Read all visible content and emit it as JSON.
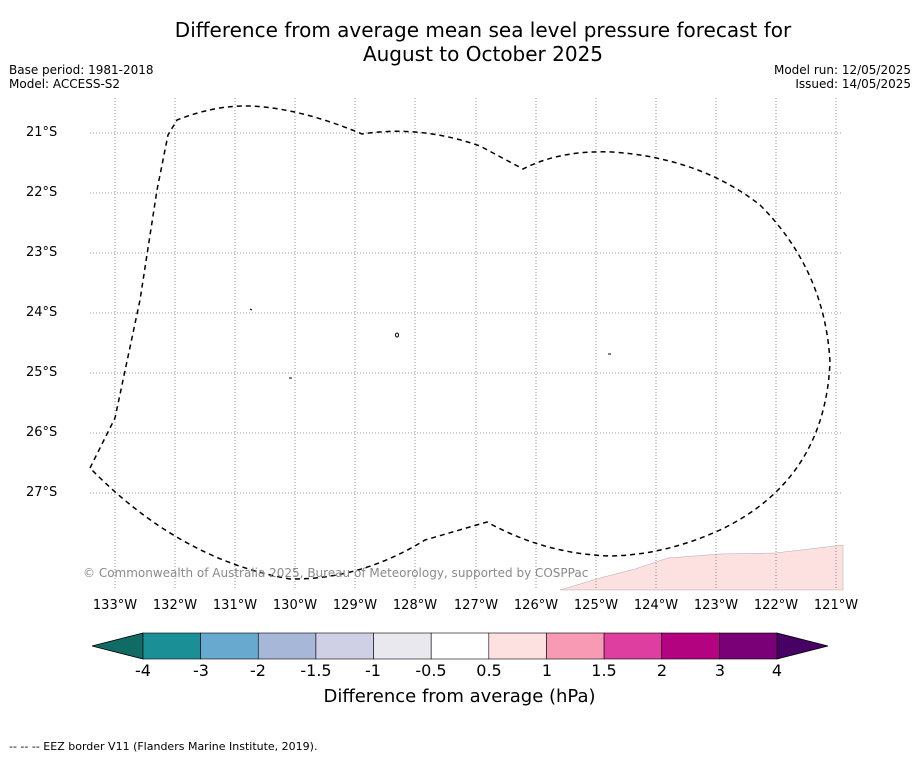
{
  "title_line1": "Difference from average mean sea level pressure forecast for",
  "title_line2": "August to October 2025",
  "meta_left": {
    "base_period": "Base period: 1981-2018",
    "model": "Model: ACCESS-S2"
  },
  "meta_right": {
    "model_run": "Model run: 12/05/2025",
    "issued": "Issued: 14/05/2025"
  },
  "lat_labels": [
    "21°S",
    "22°S",
    "23°S",
    "24°S",
    "25°S",
    "26°S",
    "27°S"
  ],
  "lon_labels": [
    "133°W",
    "132°W",
    "131°W",
    "130°W",
    "129°W",
    "128°W",
    "127°W",
    "126°W",
    "125°W",
    "124°W",
    "123°W",
    "122°W",
    "121°W"
  ],
  "copyright": "© Commonwealth of Australia 2025, Bureau of Meteorology, supported by COSPPac",
  "colorbar": {
    "title": "Difference from average (hPa)",
    "tick_labels": [
      "-4",
      "-3",
      "-2",
      "-1.5",
      "-1",
      "-0.5",
      "0.5",
      "1",
      "1.5",
      "2",
      "3",
      "4"
    ],
    "colors": [
      "#1a8f96",
      "#67a9cf",
      "#a6b7d8",
      "#cfd0e6",
      "#e9e8ee",
      "#ffffff",
      "#fde0e0",
      "#f99ab4",
      "#df3ea1",
      "#b40380",
      "#7a0078"
    ],
    "under_color": "#0f6b63",
    "over_color": "#470064"
  },
  "anomaly_fill_color": "#fde0e0",
  "footer": "-- -- -- EEZ border V11 (Flanders Marine Institute, 2019)."
}
